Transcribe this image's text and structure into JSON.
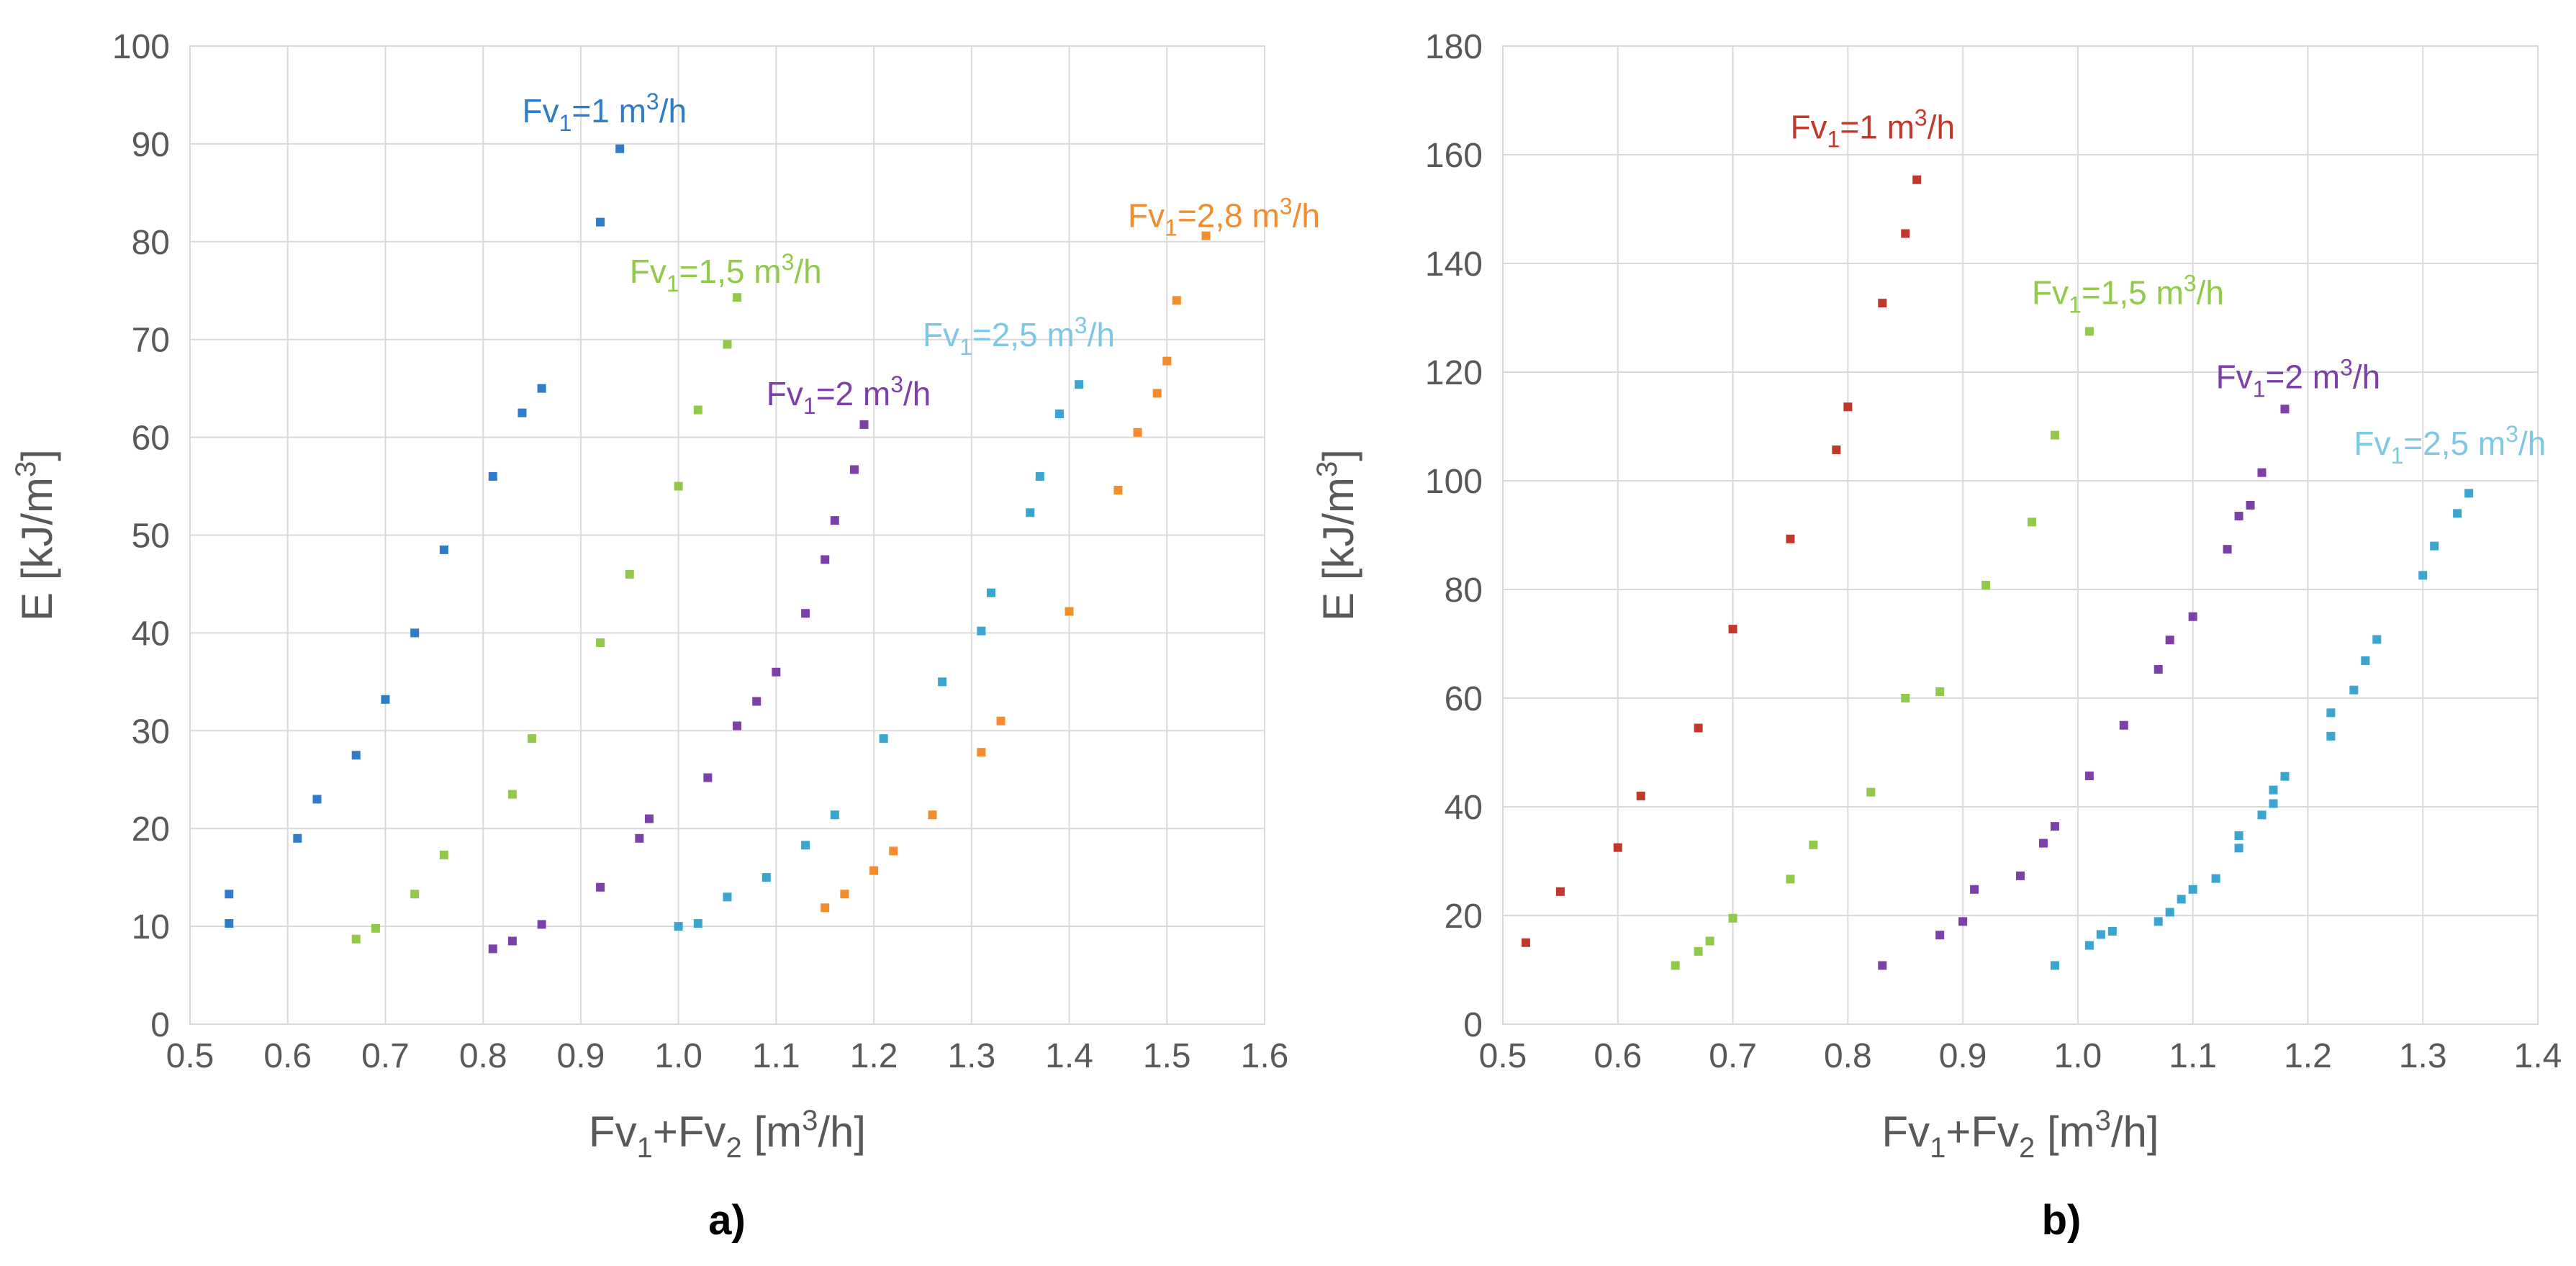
{
  "chart_data": [
    {
      "type": "scatter",
      "panel_label": "a)",
      "xlabel": "Fv1+Fv2 [m3/h]",
      "ylabel": "E [kJ/m3]",
      "xlim": [
        0.5,
        1.6
      ],
      "ylim": [
        0,
        100
      ],
      "xticks": [
        "0.5",
        "0.6",
        "0.7",
        "0.8",
        "0.9",
        "1.0",
        "1.1",
        "1.2",
        "1.3",
        "1.4",
        "1.5",
        "1.6"
      ],
      "yticks": [
        "0",
        "10",
        "20",
        "30",
        "40",
        "50",
        "60",
        "70",
        "80",
        "90",
        "100"
      ],
      "grid": true,
      "legend": "inline-labels",
      "series": [
        {
          "name": "Fv1=1 m3/h",
          "color": "#2f7dc8",
          "x": [
            0.54,
            0.54,
            0.61,
            0.63,
            0.67,
            0.7,
            0.73,
            0.76,
            0.81,
            0.84,
            0.86,
            0.92,
            0.94
          ],
          "y": [
            10.3,
            13.3,
            19,
            23,
            27.5,
            33.2,
            40,
            48.5,
            56,
            62.5,
            65,
            82,
            89.5
          ]
        },
        {
          "name": "Fv1=1,5 m3/h",
          "color": "#92c94a",
          "x": [
            0.67,
            0.69,
            0.73,
            0.76,
            0.83,
            0.85,
            0.92,
            0.95,
            1.0,
            1.02,
            1.05,
            1.06
          ],
          "y": [
            8.7,
            9.8,
            13.3,
            17.3,
            23.5,
            29.2,
            39,
            46,
            55,
            62.8,
            69.5,
            74.3
          ]
        },
        {
          "name": "Fv1=2 m3/h",
          "color": "#7d3fa8",
          "x": [
            0.81,
            0.83,
            0.86,
            0.92,
            0.96,
            0.97,
            1.03,
            1.06,
            1.08,
            1.1,
            1.13,
            1.15,
            1.16,
            1.18,
            1.19
          ],
          "y": [
            7.7,
            8.5,
            10.2,
            14,
            19,
            21,
            25.2,
            30.5,
            33,
            36,
            42,
            47.5,
            51.5,
            56.7,
            61.3
          ]
        },
        {
          "name": "Fv1=2,5 m3/h",
          "color": "#3aa5cf",
          "x": [
            1.0,
            1.02,
            1.05,
            1.09,
            1.13,
            1.16,
            1.21,
            1.27,
            1.31,
            1.32,
            1.36,
            1.37,
            1.39,
            1.41
          ],
          "y": [
            10,
            10.3,
            13,
            15,
            18.3,
            21.4,
            29.2,
            35,
            40.2,
            44.1,
            52.3,
            56,
            62.4,
            65.4
          ]
        },
        {
          "name": "Fv1=2,8 m3/h",
          "color": "#f28c2c",
          "x": [
            1.15,
            1.17,
            1.2,
            1.22,
            1.26,
            1.31,
            1.33,
            1.4,
            1.45,
            1.47,
            1.49,
            1.5,
            1.51,
            1.54
          ],
          "y": [
            11.9,
            13.3,
            15.7,
            17.7,
            21.4,
            27.8,
            31,
            42.2,
            54.6,
            60.5,
            64.5,
            67.8,
            74,
            80.6
          ]
        }
      ],
      "annotations": [
        {
          "base": "Fv",
          "sub": "1",
          "mid": "=1 m",
          "sup": "3",
          "tail": "/h",
          "color": "#2f7dc8",
          "x": 0.84,
          "y": 92.2
        },
        {
          "base": "Fv",
          "sub": "1",
          "mid": "=1,5 m",
          "sup": "3",
          "tail": "/h",
          "color": "#92c94a",
          "x": 0.95,
          "y": 75.8
        },
        {
          "base": "Fv",
          "sub": "1",
          "mid": "=2 m",
          "sup": "3",
          "tail": "/h",
          "color": "#7d3fa8",
          "x": 1.09,
          "y": 63.3
        },
        {
          "base": "Fv",
          "sub": "1",
          "mid": "=2,5 m",
          "sup": "3",
          "tail": "/h",
          "color": "#7ec8e3",
          "x": 1.25,
          "y": 69.3
        },
        {
          "base": "Fv",
          "sub": "1",
          "mid": "=2,8 m",
          "sup": "3",
          "tail": "/h",
          "color": "#f28c2c",
          "x": 1.46,
          "y": 81.5
        }
      ]
    },
    {
      "type": "scatter",
      "panel_label": "b)",
      "xlabel": "Fv1+Fv2 [m3/h]",
      "ylabel": "E [kJ/m3]",
      "xlim": [
        0.5,
        1.4
      ],
      "ylim": [
        0,
        180
      ],
      "xticks": [
        "0.5",
        "0.6",
        "0.7",
        "0.8",
        "0.9",
        "1.0",
        "1.1",
        "1.2",
        "1.3",
        "1.4"
      ],
      "yticks": [
        "0",
        "20",
        "40",
        "60",
        "80",
        "100",
        "120",
        "140",
        "160",
        "180"
      ],
      "grid": true,
      "legend": "inline-labels",
      "series": [
        {
          "name": "Fv1=1 m3/h",
          "color": "#c0392b",
          "x": [
            0.52,
            0.55,
            0.6,
            0.62,
            0.67,
            0.7,
            0.75,
            0.79,
            0.8,
            0.83,
            0.85,
            0.86
          ],
          "y": [
            15,
            24.4,
            32.5,
            42,
            54.5,
            72.7,
            89.3,
            105.7,
            113.6,
            132.7,
            145.5,
            155.4
          ]
        },
        {
          "name": "Fv1=1,5 m3/h",
          "color": "#92c94a",
          "x": [
            0.65,
            0.67,
            0.68,
            0.7,
            0.75,
            0.77,
            0.82,
            0.85,
            0.88,
            0.92,
            0.96,
            0.98,
            1.01
          ],
          "y": [
            10.8,
            13.4,
            15.3,
            19.5,
            26.7,
            33,
            42.7,
            60,
            61.2,
            80.8,
            92.4,
            108.4,
            127.5
          ]
        },
        {
          "name": "Fv1=2 m3/h",
          "color": "#7d3fa8",
          "x": [
            0.83,
            0.88,
            0.9,
            0.91,
            0.95,
            0.97,
            0.98,
            1.01,
            1.04,
            1.07,
            1.08,
            1.1,
            1.13,
            1.14,
            1.15,
            1.16,
            1.18
          ],
          "y": [
            10.8,
            16.4,
            18.9,
            24.8,
            27.3,
            33.3,
            36.4,
            45.7,
            55,
            65.3,
            70.7,
            75,
            87.4,
            93.5,
            95.5,
            101.5,
            113.2
          ]
        },
        {
          "name": "Fv1=2,5 m3/h",
          "color": "#3aa5cf",
          "x": [
            0.98,
            1.01,
            1.02,
            1.03,
            1.07,
            1.08,
            1.09,
            1.1,
            1.12,
            1.14,
            1.14,
            1.16,
            1.17,
            1.17,
            1.18,
            1.22,
            1.22,
            1.24,
            1.25,
            1.26,
            1.3,
            1.31,
            1.33,
            1.34
          ],
          "y": [
            10.8,
            14.5,
            16.5,
            17.1,
            18.9,
            20.6,
            23,
            24.8,
            26.8,
            32.4,
            34.7,
            38.5,
            40.6,
            43.1,
            45.6,
            53,
            57.3,
            61.5,
            66.9,
            70.8,
            82.6,
            88,
            94,
            97.7
          ]
        }
      ],
      "annotations": [
        {
          "base": "Fv",
          "sub": "1",
          "mid": "=1 m",
          "sup": "3",
          "tail": "/h",
          "color": "#c0392b",
          "x": 0.75,
          "y": 163
        },
        {
          "base": "Fv",
          "sub": "1",
          "mid": "=1,5 m",
          "sup": "3",
          "tail": "/h",
          "color": "#92c94a",
          "x": 0.96,
          "y": 132.5
        },
        {
          "base": "Fv",
          "sub": "1",
          "mid": "=2 m",
          "sup": "3",
          "tail": "/h",
          "color": "#7d3fa8",
          "x": 1.12,
          "y": 117
        },
        {
          "base": "Fv",
          "sub": "1",
          "mid": "=2,5 m",
          "sup": "3",
          "tail": "/h",
          "color": "#7ec8e3",
          "x": 1.24,
          "y": 104.8
        }
      ]
    }
  ]
}
